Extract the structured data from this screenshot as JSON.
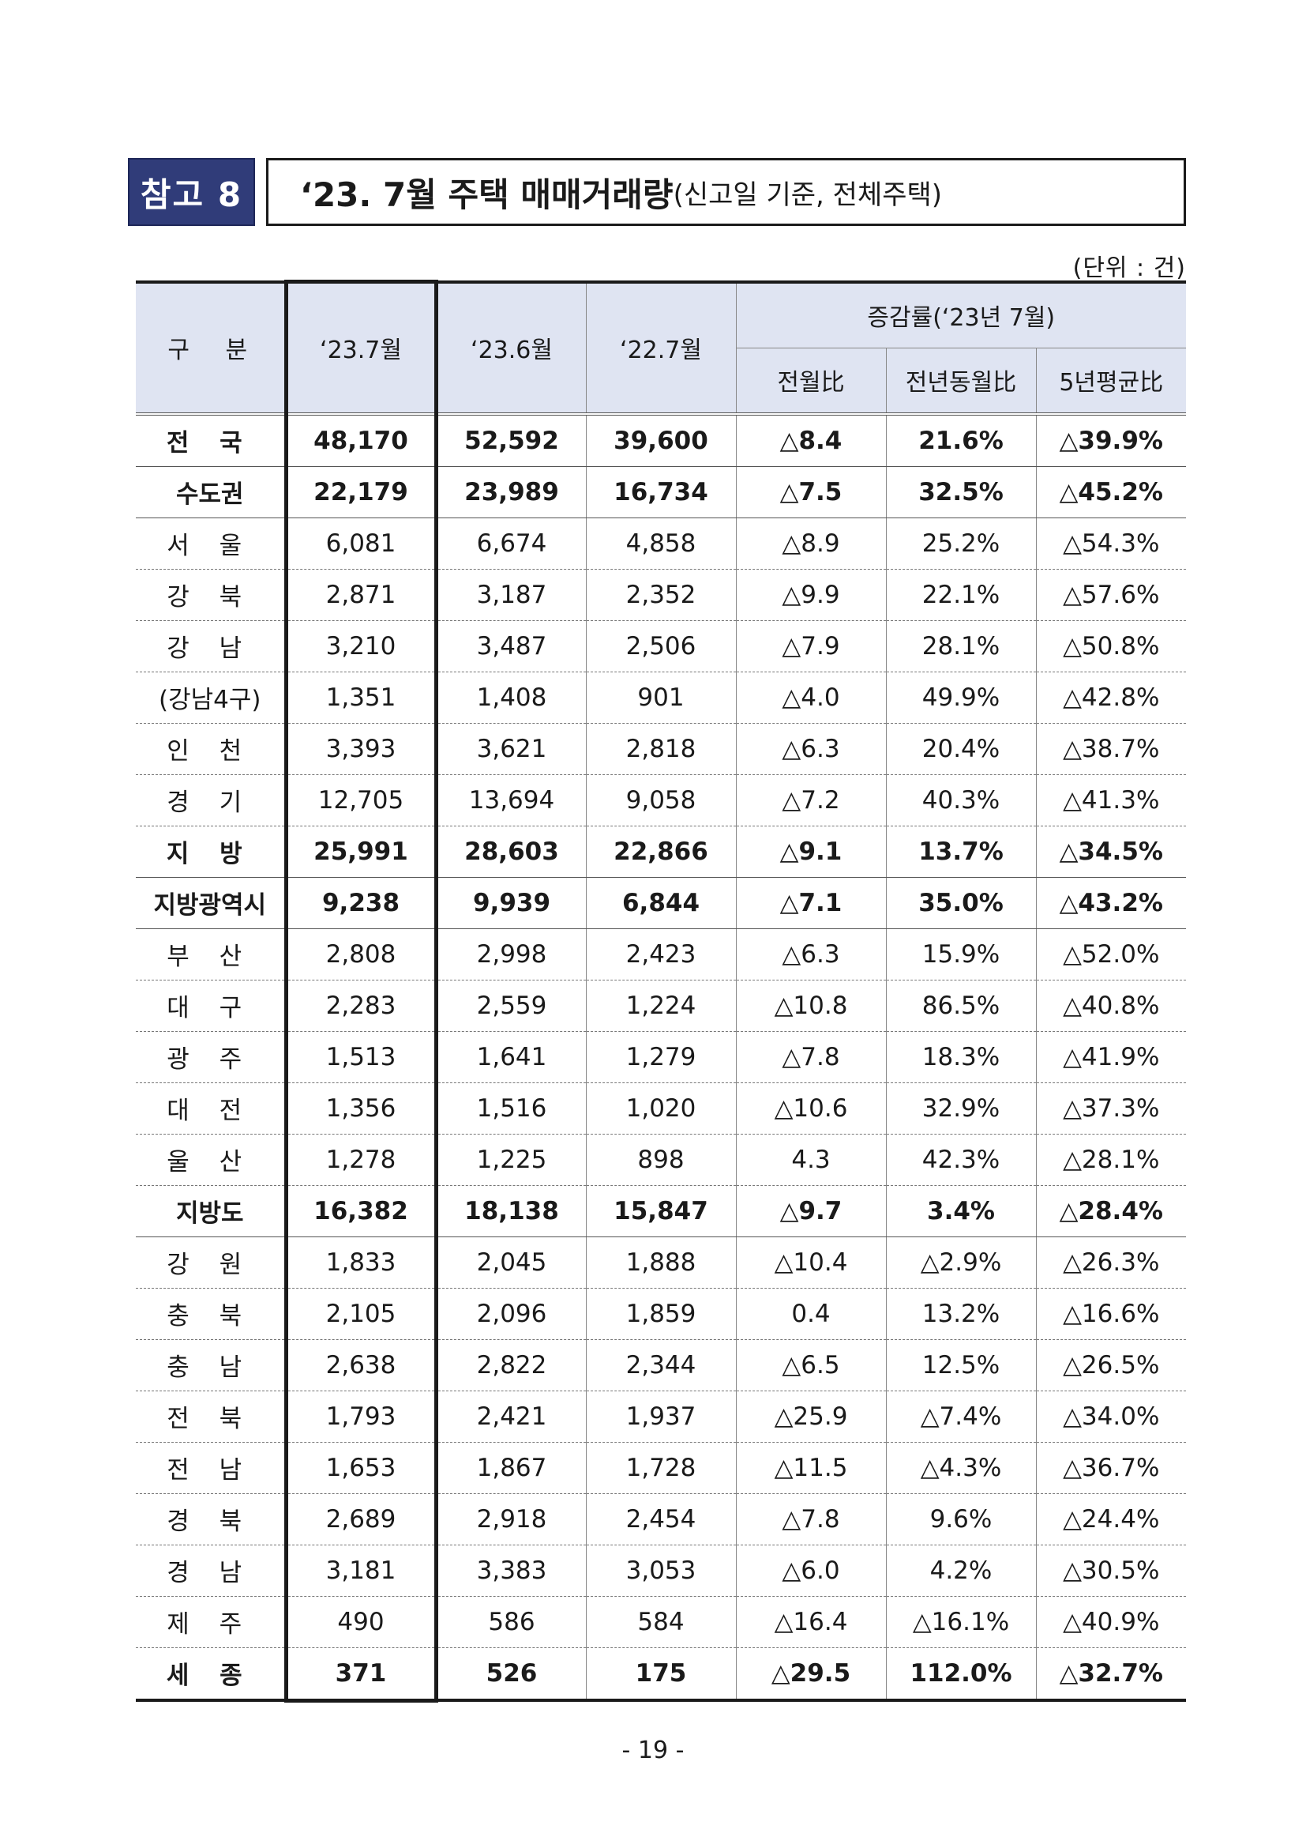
{
  "badge": "참고 8",
  "title": {
    "main": "‘23. 7월 주택 매매거래량",
    "sub": "(신고일 기준, 전체주택)"
  },
  "unit": "(단위 : 건)",
  "headers": {
    "category": "구 분",
    "col1": "‘23.7월",
    "col2": "‘23.6월",
    "col3": "‘22.7월",
    "rate_group": "증감률(‘23년 7월)",
    "rate_mom": "전월比",
    "rate_yoy": "전년동월比",
    "rate_5yr": "5년평균比"
  },
  "rows": [
    {
      "region": "전 국",
      "v1": "48,170",
      "v2": "52,592",
      "v3": "39,600",
      "r1": "△8.4",
      "r2": "21.6%",
      "r3": "△39.9%"
    },
    {
      "region": "수도권",
      "v1": "22,179",
      "v2": "23,989",
      "v3": "16,734",
      "r1": "△7.5",
      "r2": "32.5%",
      "r3": "△45.2%"
    },
    {
      "region": "서 울",
      "v1": "6,081",
      "v2": "6,674",
      "v3": "4,858",
      "r1": "△8.9",
      "r2": "25.2%",
      "r3": "△54.3%"
    },
    {
      "region": "강 북",
      "v1": "2,871",
      "v2": "3,187",
      "v3": "2,352",
      "r1": "△9.9",
      "r2": "22.1%",
      "r3": "△57.6%"
    },
    {
      "region": "강 남",
      "v1": "3,210",
      "v2": "3,487",
      "v3": "2,506",
      "r1": "△7.9",
      "r2": "28.1%",
      "r3": "△50.8%"
    },
    {
      "region": "(강남4구)",
      "v1": "1,351",
      "v2": "1,408",
      "v3": "901",
      "r1": "△4.0",
      "r2": "49.9%",
      "r3": "△42.8%"
    },
    {
      "region": "인 천",
      "v1": "3,393",
      "v2": "3,621",
      "v3": "2,818",
      "r1": "△6.3",
      "r2": "20.4%",
      "r3": "△38.7%"
    },
    {
      "region": "경 기",
      "v1": "12,705",
      "v2": "13,694",
      "v3": "9,058",
      "r1": "△7.2",
      "r2": "40.3%",
      "r3": "△41.3%"
    },
    {
      "region": "지 방",
      "v1": "25,991",
      "v2": "28,603",
      "v3": "22,866",
      "r1": "△9.1",
      "r2": "13.7%",
      "r3": "△34.5%"
    },
    {
      "region": "지방광역시",
      "v1": "9,238",
      "v2": "9,939",
      "v3": "6,844",
      "r1": "△7.1",
      "r2": "35.0%",
      "r3": "△43.2%"
    },
    {
      "region": "부 산",
      "v1": "2,808",
      "v2": "2,998",
      "v3": "2,423",
      "r1": "△6.3",
      "r2": "15.9%",
      "r3": "△52.0%"
    },
    {
      "region": "대 구",
      "v1": "2,283",
      "v2": "2,559",
      "v3": "1,224",
      "r1": "△10.8",
      "r2": "86.5%",
      "r3": "△40.8%"
    },
    {
      "region": "광 주",
      "v1": "1,513",
      "v2": "1,641",
      "v3": "1,279",
      "r1": "△7.8",
      "r2": "18.3%",
      "r3": "△41.9%"
    },
    {
      "region": "대 전",
      "v1": "1,356",
      "v2": "1,516",
      "v3": "1,020",
      "r1": "△10.6",
      "r2": "32.9%",
      "r3": "△37.3%"
    },
    {
      "region": "울 산",
      "v1": "1,278",
      "v2": "1,225",
      "v3": "898",
      "r1": "4.3",
      "r2": "42.3%",
      "r3": "△28.1%"
    },
    {
      "region": "지방도",
      "v1": "16,382",
      "v2": "18,138",
      "v3": "15,847",
      "r1": "△9.7",
      "r2": "3.4%",
      "r3": "△28.4%"
    },
    {
      "region": "강 원",
      "v1": "1,833",
      "v2": "2,045",
      "v3": "1,888",
      "r1": "△10.4",
      "r2": "△2.9%",
      "r3": "△26.3%"
    },
    {
      "region": "충 북",
      "v1": "2,105",
      "v2": "2,096",
      "v3": "1,859",
      "r1": "0.4",
      "r2": "13.2%",
      "r3": "△16.6%"
    },
    {
      "region": "충 남",
      "v1": "2,638",
      "v2": "2,822",
      "v3": "2,344",
      "r1": "△6.5",
      "r2": "12.5%",
      "r3": "△26.5%"
    },
    {
      "region": "전 북",
      "v1": "1,793",
      "v2": "2,421",
      "v3": "1,937",
      "r1": "△25.9",
      "r2": "△7.4%",
      "r3": "△34.0%"
    },
    {
      "region": "전 남",
      "v1": "1,653",
      "v2": "1,867",
      "v3": "1,728",
      "r1": "△11.5",
      "r2": "△4.3%",
      "r3": "△36.7%"
    },
    {
      "region": "경 북",
      "v1": "2,689",
      "v2": "2,918",
      "v3": "2,454",
      "r1": "△7.8",
      "r2": "9.6%",
      "r3": "△24.4%"
    },
    {
      "region": "경 남",
      "v1": "3,181",
      "v2": "3,383",
      "v3": "3,053",
      "r1": "△6.0",
      "r2": "4.2%",
      "r3": "△30.5%"
    },
    {
      "region": "제 주",
      "v1": "490",
      "v2": "586",
      "v3": "584",
      "r1": "△16.4",
      "r2": "△16.1%",
      "r3": "△40.9%"
    },
    {
      "region": "세 종",
      "v1": "371",
      "v2": "526",
      "v3": "175",
      "r1": "△29.5",
      "r2": "112.0%",
      "r3": "△32.7%"
    }
  ],
  "page_number": "- 19 -"
}
